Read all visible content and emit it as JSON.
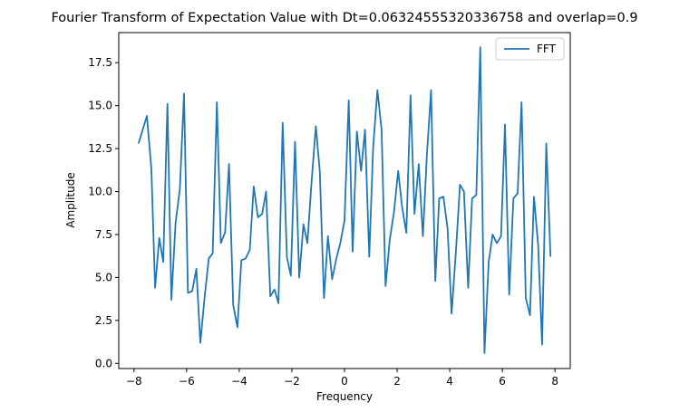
{
  "chart_data": {
    "type": "line",
    "title": "Fourier Transform of Expectation Value with Dt=0.06324555320336758 and overlap=0.9",
    "xlabel": "Frequency",
    "ylabel": "Amplitude",
    "xlim": [
      -8.58,
      8.58
    ],
    "ylim": [
      -0.3,
      19.25
    ],
    "xticks": [
      -8,
      -6,
      -4,
      -2,
      0,
      2,
      4,
      6,
      8
    ],
    "xtick_labels": [
      "−8",
      "−6",
      "−4",
      "−2",
      "0",
      "2",
      "4",
      "6",
      "8"
    ],
    "yticks": [
      0.0,
      2.5,
      5.0,
      7.5,
      10.0,
      12.5,
      15.0,
      17.5
    ],
    "ytick_labels": [
      "0.0",
      "2.5",
      "5.0",
      "7.5",
      "10.0",
      "12.5",
      "15.0",
      "17.5"
    ],
    "grid": false,
    "legend_position": "top-right",
    "series": [
      {
        "name": "FFT",
        "color": "#1f77b4",
        "x": [
          -7.83,
          -7.51,
          -7.34,
          -7.2,
          -7.04,
          -6.89,
          -6.73,
          -6.58,
          -6.42,
          -6.26,
          -6.1,
          -5.95,
          -5.79,
          -5.63,
          -5.48,
          -5.32,
          -5.16,
          -5.01,
          -4.85,
          -4.7,
          -4.54,
          -4.39,
          -4.23,
          -4.07,
          -3.92,
          -3.76,
          -3.6,
          -3.45,
          -3.29,
          -3.13,
          -2.98,
          -2.82,
          -2.66,
          -2.51,
          -2.35,
          -2.19,
          -2.04,
          -1.88,
          -1.72,
          -1.56,
          -1.41,
          -1.25,
          -1.09,
          -0.94,
          -0.78,
          -0.63,
          -0.47,
          -0.31,
          -0.16,
          0.0,
          0.16,
          0.31,
          0.47,
          0.63,
          0.78,
          0.94,
          1.09,
          1.25,
          1.41,
          1.56,
          1.72,
          1.88,
          2.04,
          2.19,
          2.35,
          2.51,
          2.66,
          2.82,
          2.98,
          3.13,
          3.29,
          3.45,
          3.6,
          3.76,
          3.92,
          4.07,
          4.23,
          4.39,
          4.54,
          4.7,
          4.85,
          5.01,
          5.16,
          5.32,
          5.48,
          5.63,
          5.79,
          5.95,
          6.1,
          6.26,
          6.42,
          6.58,
          6.73,
          6.89,
          7.05,
          7.2,
          7.36,
          7.51,
          7.67,
          7.83
        ],
        "values": [
          12.8,
          14.4,
          11.3,
          4.4,
          7.3,
          5.9,
          15.1,
          3.7,
          8.2,
          10.1,
          15.7,
          4.1,
          4.2,
          5.5,
          1.2,
          3.8,
          6.1,
          6.4,
          15.2,
          7.0,
          7.6,
          11.6,
          3.4,
          2.1,
          6.0,
          6.1,
          6.6,
          10.3,
          8.5,
          8.7,
          10.0,
          3.9,
          4.3,
          3.5,
          14.0,
          6.2,
          5.1,
          12.9,
          5.0,
          8.1,
          7.0,
          10.6,
          13.8,
          11.2,
          3.8,
          7.4,
          4.9,
          6.1,
          7.0,
          8.3,
          15.3,
          6.5,
          13.5,
          11.2,
          13.6,
          6.2,
          12.6,
          15.9,
          13.6,
          4.5,
          7.2,
          8.8,
          11.2,
          9.1,
          7.6,
          15.6,
          8.7,
          11.6,
          7.4,
          12.1,
          15.9,
          4.8,
          9.6,
          9.7,
          7.8,
          2.9,
          6.4,
          10.4,
          10.0,
          4.4,
          9.6,
          9.8,
          18.4,
          0.6,
          5.9,
          7.5,
          7.0,
          7.4,
          13.9,
          4.0,
          9.6,
          9.9,
          15.2,
          3.8,
          2.8,
          9.7,
          6.9,
          1.1,
          12.8,
          6.2
        ]
      }
    ]
  }
}
